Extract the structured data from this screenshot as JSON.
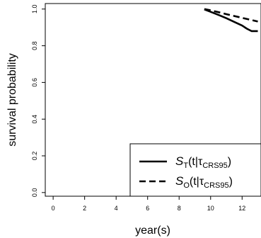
{
  "chart_data": {
    "type": "line",
    "xlabel": "year(s)",
    "ylabel": "survival probability",
    "xlim": [
      -0.5,
      13.2
    ],
    "ylim": [
      -0.02,
      1.03
    ],
    "xticks": [
      0,
      2,
      4,
      6,
      8,
      10,
      12
    ],
    "xtick_labels": [
      "0",
      "2",
      "4",
      "6",
      "8",
      "10",
      "12"
    ],
    "yticks": [
      0.0,
      0.2,
      0.4,
      0.6,
      0.8,
      1.0
    ],
    "ytick_labels": [
      "0.0",
      "0.2",
      "0.4",
      "0.6",
      "0.8",
      "1.0"
    ],
    "grid": false,
    "legend_position": "bottom-right",
    "series": [
      {
        "id": "ST",
        "style": "solid",
        "color": "#000000",
        "legend": {
          "main": "S",
          "sub": "T",
          "mid": "(t|τ",
          "sub2": "CRS95",
          "end": ")"
        },
        "x": [
          9.6,
          10.0,
          10.5,
          11.0,
          11.5,
          12.0,
          12.3,
          12.6,
          13.0
        ],
        "y": [
          0.998,
          0.985,
          0.968,
          0.95,
          0.93,
          0.91,
          0.893,
          0.88,
          0.88
        ]
      },
      {
        "id": "SO",
        "style": "dashed",
        "color": "#000000",
        "legend": {
          "main": "S",
          "sub": "O",
          "mid": "(t|τ",
          "sub2": "CRS95",
          "end": ")"
        },
        "x": [
          9.6,
          10.0,
          10.5,
          11.0,
          11.5,
          12.0,
          12.5,
          13.0
        ],
        "y": [
          1.0,
          0.993,
          0.983,
          0.972,
          0.962,
          0.952,
          0.942,
          0.932
        ]
      }
    ]
  }
}
